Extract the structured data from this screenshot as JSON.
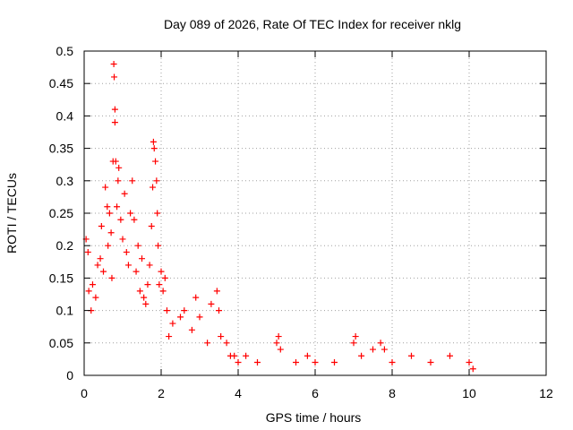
{
  "chart_data": {
    "type": "scatter",
    "title": "Day 089 of 2026, Rate Of TEC Index for receiver nklg",
    "xlabel": "GPS time / hours",
    "ylabel": "ROTI / TECUs",
    "xlim": [
      0,
      12
    ],
    "ylim": [
      0,
      0.5
    ],
    "xticks": [
      0,
      2,
      4,
      6,
      8,
      10,
      12
    ],
    "yticks": [
      0,
      0.05,
      0.1,
      0.15,
      0.2,
      0.25,
      0.3,
      0.35,
      0.4,
      0.45,
      0.5
    ],
    "xtick_labels": [
      "0",
      "2",
      "4",
      "6",
      "8",
      "10",
      "12"
    ],
    "ytick_labels": [
      "0",
      "0.05",
      "0.1",
      "0.15",
      "0.2",
      "0.25",
      "0.3",
      "0.35",
      "0.4",
      "0.45",
      "0.5"
    ],
    "grid": true,
    "marker": "+",
    "color": "#ff0000",
    "series": [
      {
        "name": "ROTI",
        "points": [
          [
            0.05,
            0.21
          ],
          [
            0.1,
            0.19
          ],
          [
            0.12,
            0.13
          ],
          [
            0.18,
            0.1
          ],
          [
            0.22,
            0.14
          ],
          [
            0.3,
            0.12
          ],
          [
            0.35,
            0.17
          ],
          [
            0.42,
            0.18
          ],
          [
            0.45,
            0.23
          ],
          [
            0.5,
            0.16
          ],
          [
            0.55,
            0.29
          ],
          [
            0.6,
            0.26
          ],
          [
            0.62,
            0.2
          ],
          [
            0.66,
            0.25
          ],
          [
            0.7,
            0.22
          ],
          [
            0.72,
            0.15
          ],
          [
            0.75,
            0.33
          ],
          [
            0.77,
            0.48
          ],
          [
            0.78,
            0.46
          ],
          [
            0.8,
            0.41
          ],
          [
            0.8,
            0.39
          ],
          [
            0.82,
            0.33
          ],
          [
            0.85,
            0.26
          ],
          [
            0.88,
            0.3
          ],
          [
            0.9,
            0.32
          ],
          [
            0.95,
            0.24
          ],
          [
            1.0,
            0.21
          ],
          [
            1.05,
            0.28
          ],
          [
            1.1,
            0.19
          ],
          [
            1.15,
            0.17
          ],
          [
            1.2,
            0.25
          ],
          [
            1.25,
            0.3
          ],
          [
            1.3,
            0.24
          ],
          [
            1.35,
            0.16
          ],
          [
            1.4,
            0.2
          ],
          [
            1.45,
            0.13
          ],
          [
            1.5,
            0.18
          ],
          [
            1.55,
            0.12
          ],
          [
            1.6,
            0.11
          ],
          [
            1.65,
            0.14
          ],
          [
            1.7,
            0.17
          ],
          [
            1.75,
            0.23
          ],
          [
            1.78,
            0.29
          ],
          [
            1.8,
            0.36
          ],
          [
            1.82,
            0.35
          ],
          [
            1.85,
            0.33
          ],
          [
            1.88,
            0.3
          ],
          [
            1.9,
            0.25
          ],
          [
            1.92,
            0.2
          ],
          [
            1.95,
            0.14
          ],
          [
            2.0,
            0.16
          ],
          [
            2.05,
            0.13
          ],
          [
            2.1,
            0.15
          ],
          [
            2.15,
            0.1
          ],
          [
            2.2,
            0.06
          ],
          [
            2.3,
            0.08
          ],
          [
            2.5,
            0.09
          ],
          [
            2.6,
            0.1
          ],
          [
            2.8,
            0.07
          ],
          [
            2.9,
            0.12
          ],
          [
            3.0,
            0.09
          ],
          [
            3.2,
            0.05
          ],
          [
            3.3,
            0.11
          ],
          [
            3.45,
            0.13
          ],
          [
            3.5,
            0.1
          ],
          [
            3.55,
            0.06
          ],
          [
            3.7,
            0.05
          ],
          [
            3.8,
            0.03
          ],
          [
            3.9,
            0.03
          ],
          [
            4.0,
            0.02
          ],
          [
            4.2,
            0.03
          ],
          [
            4.5,
            0.02
          ],
          [
            5.0,
            0.05
          ],
          [
            5.05,
            0.06
          ],
          [
            5.1,
            0.04
          ],
          [
            5.5,
            0.02
          ],
          [
            5.8,
            0.03
          ],
          [
            6.0,
            0.02
          ],
          [
            6.5,
            0.02
          ],
          [
            7.0,
            0.05
          ],
          [
            7.05,
            0.06
          ],
          [
            7.2,
            0.03
          ],
          [
            7.5,
            0.04
          ],
          [
            7.7,
            0.05
          ],
          [
            7.8,
            0.04
          ],
          [
            8.0,
            0.02
          ],
          [
            8.5,
            0.03
          ],
          [
            9.0,
            0.02
          ],
          [
            9.5,
            0.03
          ],
          [
            10.0,
            0.02
          ],
          [
            10.1,
            0.01
          ]
        ]
      }
    ]
  }
}
